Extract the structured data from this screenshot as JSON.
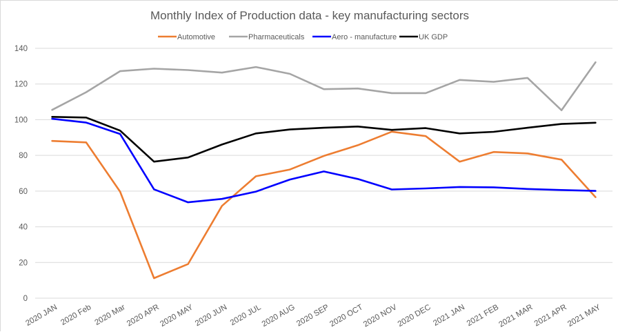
{
  "chart_data": {
    "type": "line",
    "title": "Monthly Index of Production data  - key manufacturing sectors",
    "xlabel": "",
    "ylabel": "",
    "ylim": [
      0,
      140
    ],
    "yticks": [
      0,
      20,
      40,
      60,
      80,
      100,
      120,
      140
    ],
    "grid": true,
    "legend_position": "top",
    "categories": [
      "2020 JAN",
      "2020 Feb",
      "2020 Mar",
      "2020 APR",
      "2020 MAY",
      "2020 JUN",
      "2020 JUL",
      "2020 AUG",
      "2020 SEP",
      "2020 OCT",
      "2020 NOV",
      "2020 DEC",
      "2021 JAN",
      "2021 FEB",
      "2021 MAR",
      "2021 APR",
      "2021 MAY"
    ],
    "series": [
      {
        "name": "Automotive",
        "color": "#ed7d31",
        "values": [
          88.1,
          87.3,
          59.7,
          11.2,
          19.1,
          51.7,
          68.3,
          72.1,
          79.7,
          85.7,
          93.3,
          90.8,
          76.5,
          81.9,
          81.1,
          77.6,
          56.6
        ]
      },
      {
        "name": "Pharmaceuticals",
        "color": "#a5a5a5",
        "values": [
          105.5,
          115.4,
          127.2,
          128.6,
          127.8,
          126.4,
          129.5,
          125.7,
          117.1,
          117.5,
          114.9,
          114.9,
          122.3,
          121.2,
          123.4,
          105.3,
          132.2
        ]
      },
      {
        "name": "Aero - manufacture",
        "color": "#0000ff",
        "values": [
          100.5,
          98.4,
          92.0,
          61.0,
          53.7,
          55.6,
          59.7,
          66.5,
          71.0,
          66.8,
          60.9,
          61.5,
          62.3,
          62.1,
          61.2,
          60.6,
          60.1
        ]
      },
      {
        "name": "UK GDP",
        "color": "#000000",
        "values": [
          101.6,
          101.2,
          93.9,
          76.5,
          78.8,
          86.1,
          92.3,
          94.5,
          95.5,
          96.2,
          94.3,
          95.3,
          92.3,
          93.2,
          95.5,
          97.6,
          98.3
        ]
      }
    ]
  }
}
